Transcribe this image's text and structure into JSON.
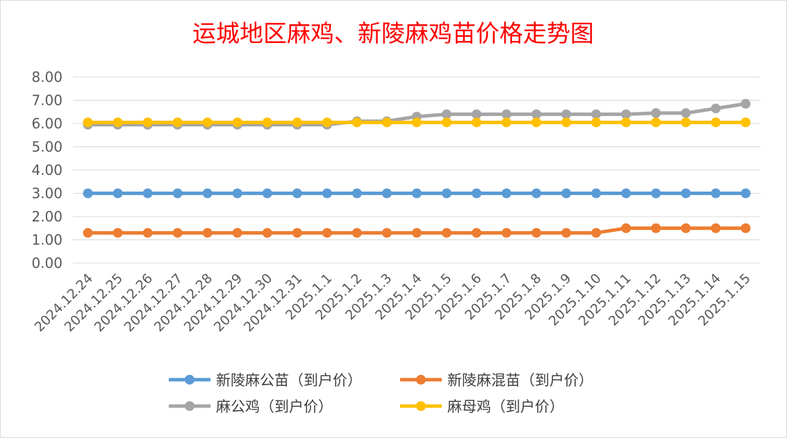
{
  "chart_data": {
    "type": "line",
    "title": "运城地区麻鸡、新陵麻鸡苗价格走势图",
    "xlabel": "",
    "ylabel": "",
    "ylim": [
      0,
      8
    ],
    "yticks": [
      "0.00",
      "1.00",
      "2.00",
      "3.00",
      "4.00",
      "5.00",
      "6.00",
      "7.00",
      "8.00"
    ],
    "grid": true,
    "legend_position": "bottom",
    "categories": [
      "2024.12.24",
      "2024.12.25",
      "2024.12.26",
      "2024.12.27",
      "2024.12.28",
      "2024.12.29",
      "2024.12.30",
      "2024.12.31",
      "2025.1.1",
      "2025.1.2",
      "2025.1.3",
      "2025.1.4",
      "2025.1.5",
      "2025.1.6",
      "2025.1.7",
      "2025.1.8",
      "2025.1.9",
      "2025.1.10",
      "2025.1.11",
      "2025.1.12",
      "2025.1.13",
      "2025.1.14",
      "2025.1.15"
    ],
    "series": [
      {
        "name": "新陵麻公苗（到户价）",
        "color": "#5b9bd5",
        "values": [
          3,
          3,
          3,
          3,
          3,
          3,
          3,
          3,
          3,
          3,
          3,
          3,
          3,
          3,
          3,
          3,
          3,
          3,
          3,
          3,
          3,
          3,
          3
        ]
      },
      {
        "name": "新陵麻混苗（到户价）",
        "color": "#ed7d31",
        "values": [
          1.3,
          1.3,
          1.3,
          1.3,
          1.3,
          1.3,
          1.3,
          1.3,
          1.3,
          1.3,
          1.3,
          1.3,
          1.3,
          1.3,
          1.3,
          1.3,
          1.3,
          1.3,
          1.5,
          1.5,
          1.5,
          1.5,
          1.5
        ]
      },
      {
        "name": "麻公鸡（到户价）",
        "color": "#a5a5a5",
        "values": [
          5.95,
          5.95,
          5.95,
          5.95,
          5.95,
          5.95,
          5.95,
          5.95,
          5.95,
          6.1,
          6.1,
          6.3,
          6.4,
          6.4,
          6.4,
          6.4,
          6.4,
          6.4,
          6.4,
          6.45,
          6.45,
          6.65,
          6.85
        ]
      },
      {
        "name": "麻母鸡（到户价）",
        "color": "#ffc000",
        "values": [
          6.05,
          6.05,
          6.05,
          6.05,
          6.05,
          6.05,
          6.05,
          6.05,
          6.05,
          6.05,
          6.05,
          6.05,
          6.05,
          6.05,
          6.05,
          6.05,
          6.05,
          6.05,
          6.05,
          6.05,
          6.05,
          6.05,
          6.05
        ]
      }
    ]
  }
}
